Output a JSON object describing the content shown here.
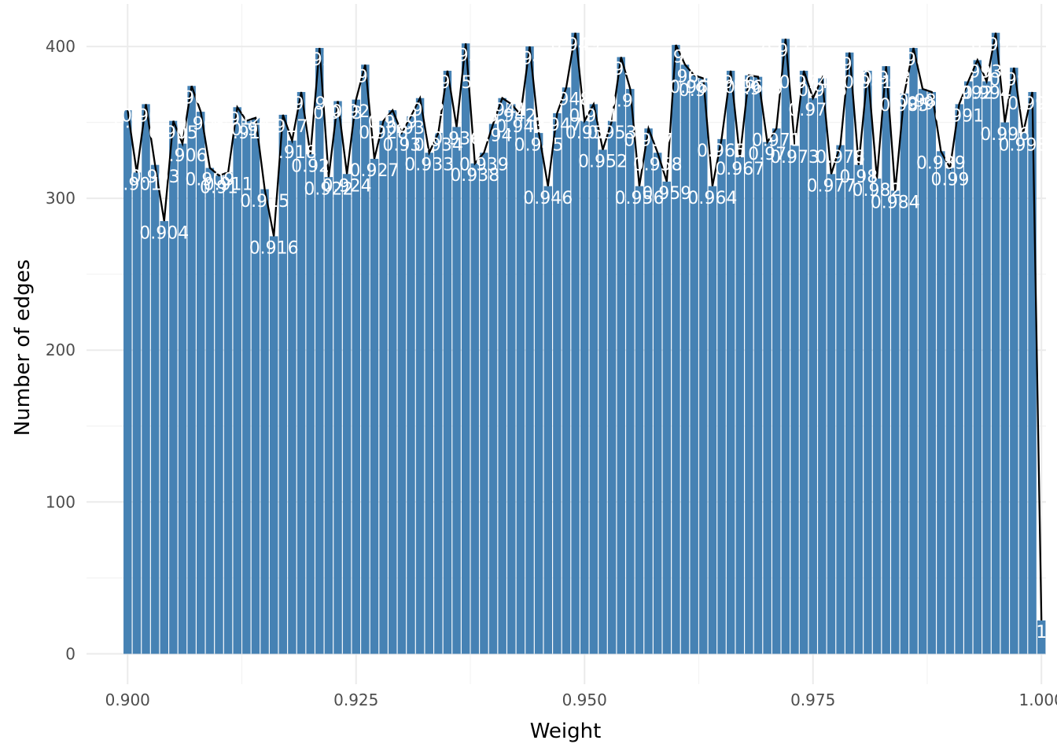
{
  "colors": {
    "bar": "#4682B4",
    "line": "#000000",
    "grid_major": "#EBEBEB",
    "grid_minor": "#F3F3F3",
    "label": "#FFFFFF",
    "tick_text": "#4D4D4D"
  },
  "chart_data": {
    "type": "bar",
    "title": "",
    "xlabel": "Weight",
    "ylabel": "Number of edges",
    "xlim": [
      0.8955,
      1.0005
    ],
    "ylim": [
      -20,
      428
    ],
    "x_ticks": [
      0.9,
      0.925,
      0.95,
      0.975,
      1.0
    ],
    "x_tick_labels": [
      "0.900",
      "0.925",
      "0.950",
      "0.975",
      "1.000"
    ],
    "y_ticks": [
      0,
      100,
      200,
      300,
      400
    ],
    "y_tick_labels": [
      "0",
      "100",
      "200",
      "300",
      "400"
    ],
    "grid": true,
    "legend": "none",
    "bar_width": 0.0009,
    "overlay": "line connecting bar tops",
    "label_decimals": 3,
    "x": [
      0.9,
      0.901,
      0.902,
      0.903,
      0.904,
      0.905,
      0.906,
      0.907,
      0.908,
      0.909,
      0.91,
      0.911,
      0.912,
      0.913,
      0.914,
      0.915,
      0.916,
      0.917,
      0.918,
      0.919,
      0.92,
      0.921,
      0.922,
      0.923,
      0.924,
      0.925,
      0.926,
      0.927,
      0.928,
      0.929,
      0.93,
      0.931,
      0.932,
      0.933,
      0.934,
      0.935,
      0.936,
      0.937,
      0.938,
      0.939,
      0.94,
      0.941,
      0.942,
      0.943,
      0.944,
      0.945,
      0.946,
      0.947,
      0.948,
      0.949,
      0.95,
      0.951,
      0.952,
      0.953,
      0.954,
      0.955,
      0.956,
      0.957,
      0.958,
      0.959,
      0.96,
      0.961,
      0.962,
      0.963,
      0.964,
      0.965,
      0.966,
      0.967,
      0.968,
      0.969,
      0.97,
      0.971,
      0.972,
      0.973,
      0.974,
      0.975,
      0.976,
      0.977,
      0.978,
      0.979,
      0.98,
      0.981,
      0.982,
      0.983,
      0.984,
      0.985,
      0.986,
      0.987,
      0.988,
      0.989,
      0.99,
      0.991,
      0.992,
      0.993,
      0.994,
      0.995,
      0.996,
      0.997,
      0.998,
      0.999,
      1.0
    ],
    "values": [
      358,
      317,
      362,
      322,
      285,
      351,
      336,
      374,
      357,
      320,
      315,
      317,
      360,
      351,
      353,
      306,
      275,
      355,
      338,
      370,
      329,
      399,
      314,
      364,
      316,
      365,
      388,
      326,
      351,
      358,
      343,
      354,
      366,
      330,
      343,
      384,
      347,
      402,
      323,
      330,
      349,
      366,
      362,
      355,
      400,
      343,
      308,
      356,
      373,
      409,
      351,
      362,
      332,
      351,
      393,
      372,
      308,
      346,
      330,
      311,
      401,
      388,
      381,
      379,
      308,
      339,
      384,
      327,
      381,
      380,
      337,
      346,
      405,
      335,
      384,
      366,
      379,
      316,
      335,
      396,
      322,
      384,
      313,
      387,
      305,
      369,
      399,
      372,
      370,
      331,
      320,
      362,
      377,
      391,
      377,
      409,
      350,
      386,
      343,
      370,
      22
    ]
  }
}
